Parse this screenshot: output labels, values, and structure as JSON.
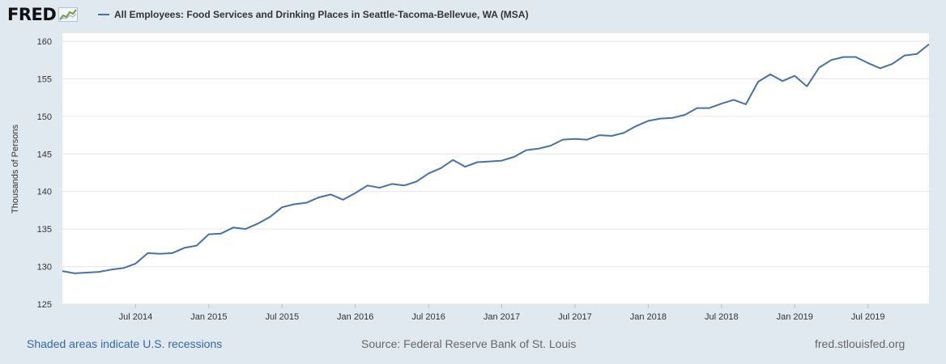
{
  "header": {
    "logo_text": "FRED",
    "legend_title": "All Employees: Food Services and Drinking Places in Seattle-Tacoma-Bellevue, WA (MSA)"
  },
  "chart_data": {
    "type": "line",
    "title": "All Employees: Food Services and Drinking Places in Seattle-Tacoma-Bellevue, WA (MSA)",
    "xlabel": "",
    "ylabel": "Thousands of Persons",
    "ylim": [
      125,
      160
    ],
    "yticks": [
      125,
      130,
      135,
      140,
      145,
      150,
      155,
      160
    ],
    "xticks": [
      "Jul 2014",
      "Jan 2015",
      "Jul 2015",
      "Jan 2016",
      "Jul 2016",
      "Jan 2017",
      "Jul 2017",
      "Jan 2018",
      "Jul 2018",
      "Jan 2019",
      "Jul 2019"
    ],
    "grid": true,
    "line_color": "#4572a7",
    "series": [
      {
        "name": "All Employees: Food Services and Drinking Places in Seattle-Tacoma-Bellevue, WA (MSA)",
        "x": [
          "2014-01",
          "2014-02",
          "2014-03",
          "2014-04",
          "2014-05",
          "2014-06",
          "2014-07",
          "2014-08",
          "2014-09",
          "2014-10",
          "2014-11",
          "2014-12",
          "2015-01",
          "2015-02",
          "2015-03",
          "2015-04",
          "2015-05",
          "2015-06",
          "2015-07",
          "2015-08",
          "2015-09",
          "2015-10",
          "2015-11",
          "2015-12",
          "2016-01",
          "2016-02",
          "2016-03",
          "2016-04",
          "2016-05",
          "2016-06",
          "2016-07",
          "2016-08",
          "2016-09",
          "2016-10",
          "2016-11",
          "2016-12",
          "2017-01",
          "2017-02",
          "2017-03",
          "2017-04",
          "2017-05",
          "2017-06",
          "2017-07",
          "2017-08",
          "2017-09",
          "2017-10",
          "2017-11",
          "2017-12",
          "2018-01",
          "2018-02",
          "2018-03",
          "2018-04",
          "2018-05",
          "2018-06",
          "2018-07",
          "2018-08",
          "2018-09",
          "2018-10",
          "2018-11",
          "2018-12",
          "2019-01",
          "2019-02",
          "2019-03",
          "2019-04",
          "2019-05",
          "2019-06",
          "2019-07",
          "2019-08",
          "2019-09",
          "2019-10",
          "2019-11",
          "2019-12"
        ],
        "values": [
          129.4,
          129.1,
          129.2,
          129.3,
          129.6,
          129.8,
          130.4,
          131.8,
          131.7,
          131.8,
          132.5,
          132.8,
          134.3,
          134.4,
          135.2,
          135.0,
          135.7,
          136.6,
          137.9,
          138.3,
          138.5,
          139.2,
          139.6,
          138.9,
          139.8,
          140.8,
          140.5,
          141.0,
          140.8,
          141.3,
          142.4,
          143.1,
          144.2,
          143.3,
          143.9,
          144.0,
          144.1,
          144.6,
          145.5,
          145.7,
          146.1,
          146.9,
          147.0,
          146.9,
          147.5,
          147.4,
          147.8,
          148.7,
          149.4,
          149.7,
          149.8,
          150.2,
          151.1,
          151.1,
          151.7,
          152.2,
          151.6,
          154.6,
          155.6,
          154.7,
          155.4,
          154.0,
          156.5,
          157.5,
          157.9,
          157.9,
          157.1,
          156.4,
          157.0,
          158.1,
          158.3,
          159.6
        ]
      }
    ]
  },
  "footer": {
    "recession_note": "Shaded areas indicate U.S. recessions",
    "source": "Source: Federal Reserve Bank of St. Louis",
    "site": "fred.stlouisfed.org"
  },
  "icons": {
    "logo_graph": "fred-logo-graph-icon"
  }
}
